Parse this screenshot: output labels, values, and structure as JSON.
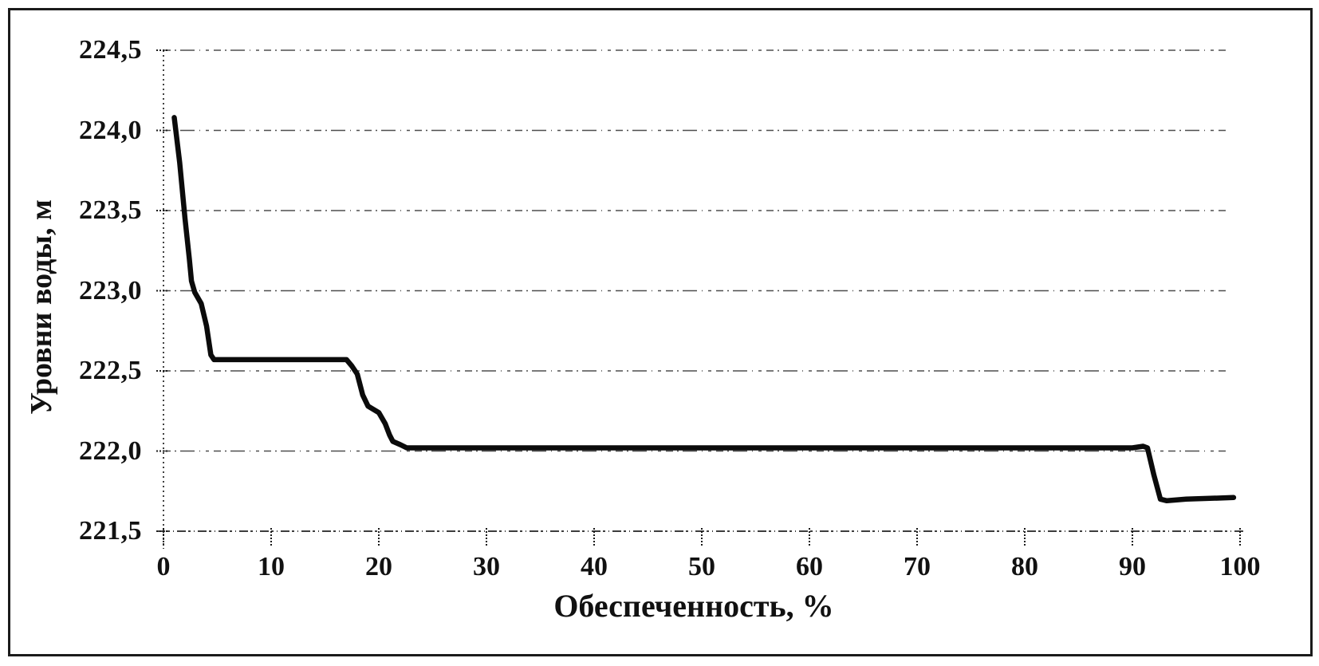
{
  "figure": {
    "background_color": "#ffffff",
    "frame_color": "#1b1b1b",
    "line_color": "#0b0b0b",
    "text_color": "#111111"
  },
  "chart_data": {
    "type": "line",
    "title": "",
    "xlabel": "Обеспеченность, %",
    "ylabel": "Уровни воды, м",
    "xlim": [
      0,
      100
    ],
    "ylim": [
      221.5,
      224.5
    ],
    "x_ticks": [
      0,
      10,
      20,
      30,
      40,
      50,
      60,
      70,
      80,
      90,
      100
    ],
    "x_tick_labels": [
      "0",
      "10",
      "20",
      "30",
      "40",
      "50",
      "60",
      "70",
      "80",
      "90",
      "100"
    ],
    "y_ticks": [
      224.5,
      224.0,
      223.5,
      223.0,
      222.5,
      222.0,
      221.5
    ],
    "y_tick_labels": [
      "224,5",
      "224,0",
      "223,5",
      "223,0",
      "222,5",
      "222,0",
      "221,5"
    ],
    "grid": "horizontal-dashed",
    "legend": "none",
    "series": [
      {
        "name": "Уровни воды",
        "points": [
          [
            1.0,
            224.08
          ],
          [
            1.5,
            223.8
          ],
          [
            2.0,
            223.45
          ],
          [
            2.4,
            223.2
          ],
          [
            2.6,
            223.06
          ],
          [
            2.9,
            222.99
          ],
          [
            3.5,
            222.92
          ],
          [
            4.0,
            222.78
          ],
          [
            4.4,
            222.6
          ],
          [
            4.7,
            222.57
          ],
          [
            17.0,
            222.57
          ],
          [
            17.5,
            222.53
          ],
          [
            18.0,
            222.48
          ],
          [
            18.5,
            222.35
          ],
          [
            19.0,
            222.28
          ],
          [
            20.0,
            222.24
          ],
          [
            20.6,
            222.17
          ],
          [
            21.0,
            222.1
          ],
          [
            21.3,
            222.06
          ],
          [
            22.0,
            222.04
          ],
          [
            22.6,
            222.02
          ],
          [
            23.3,
            222.02
          ],
          [
            90.0,
            222.02
          ],
          [
            91.0,
            222.03
          ],
          [
            91.4,
            222.02
          ],
          [
            92.0,
            221.85
          ],
          [
            92.6,
            221.7
          ],
          [
            93.2,
            221.69
          ],
          [
            95.0,
            221.7
          ],
          [
            99.4,
            221.71
          ]
        ]
      }
    ]
  }
}
